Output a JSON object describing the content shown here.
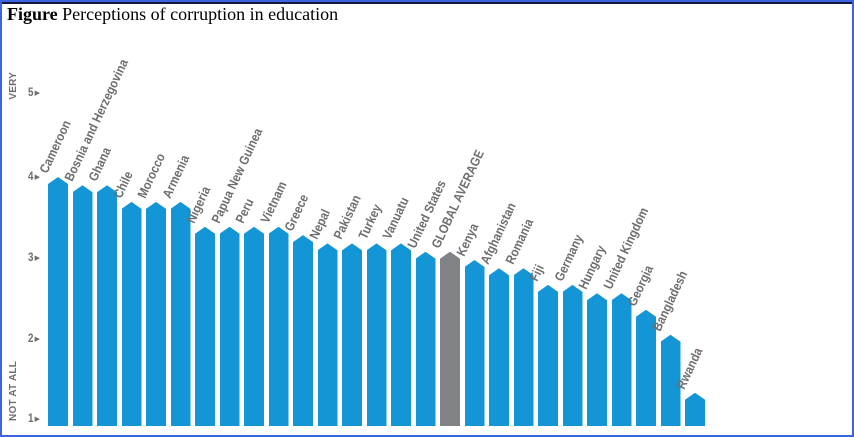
{
  "figure": {
    "label": "Figure",
    "title": "Perceptions of corruption in education"
  },
  "axis": {
    "top_label": "VERY",
    "bottom_label": "NOT AT ALL",
    "ticks": [
      "5",
      "4",
      "3",
      "2",
      "1"
    ],
    "tick_arrow_icon": "▶"
  },
  "colors": {
    "bar_blue": "#1496D6",
    "highlight_gray": "#808285",
    "text_gray": "#6D6E71",
    "screenshot_border_blue": "#3C64E1",
    "figure_top_rule": "#14183a"
  },
  "chart_data": {
    "type": "bar",
    "title": "Figure Perceptions of corruption in education",
    "xlabel": "",
    "ylabel": "",
    "ylim": [
      1,
      5
    ],
    "yticks": [
      1,
      2,
      3,
      4,
      5
    ],
    "ytick_captions": {
      "5": "VERY",
      "1": "NOT AT ALL"
    },
    "grid": false,
    "legend": false,
    "categories": [
      "Cameroon",
      "Bosnia and Herzegovina",
      "Ghana",
      "Chile",
      "Morocco",
      "Armenia",
      "Nigeria",
      "Papua New Guinea",
      "Peru",
      "Vietnam",
      "Greece",
      "Nepal",
      "Pakistan",
      "Turkey",
      "Vanuatu",
      "United States",
      "GLOBAL AVERAGE",
      "Kenya",
      "Afghanistan",
      "Romania",
      "Fiji",
      "Germany",
      "Hungary",
      "United Kingdom",
      "Georgia",
      "Bangladesh",
      "Rwanda"
    ],
    "values": [
      4.0,
      3.9,
      3.9,
      3.7,
      3.7,
      3.7,
      3.4,
      3.4,
      3.4,
      3.4,
      3.3,
      3.2,
      3.2,
      3.2,
      3.2,
      3.1,
      3.1,
      3.0,
      2.9,
      2.9,
      2.7,
      2.7,
      2.6,
      2.6,
      2.4,
      2.1,
      1.4
    ],
    "highlight_category": "GLOBAL AVERAGE",
    "bar_color": "#1496D6",
    "highlight_color": "#808285"
  }
}
